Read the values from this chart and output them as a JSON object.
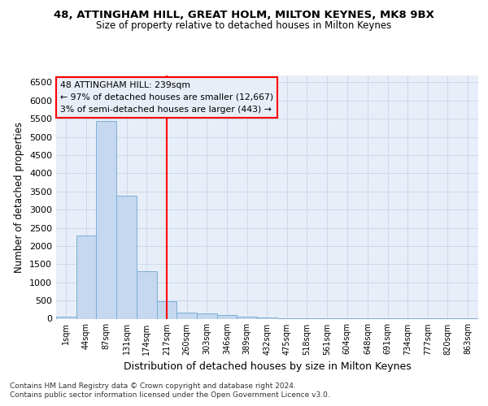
{
  "title1": "48, ATTINGHAM HILL, GREAT HOLM, MILTON KEYNES, MK8 9BX",
  "title2": "Size of property relative to detached houses in Milton Keynes",
  "xlabel": "Distribution of detached houses by size in Milton Keynes",
  "ylabel": "Number of detached properties",
  "footnote1": "Contains HM Land Registry data © Crown copyright and database right 2024.",
  "footnote2": "Contains public sector information licensed under the Open Government Licence v3.0.",
  "annotation_title": "48 ATTINGHAM HILL: 239sqm",
  "annotation_line1": "← 97% of detached houses are smaller (12,667)",
  "annotation_line2": "3% of semi-detached houses are larger (443) →",
  "property_size": 239,
  "bar_color": "#c5d8ef",
  "bar_edge_color": "#7bafd4",
  "vline_color": "red",
  "grid_color": "#c8d4e8",
  "background_color": "#ffffff",
  "plot_bg_color": "#e8eef8",
  "categories": [
    "1sqm",
    "44sqm",
    "87sqm",
    "131sqm",
    "174sqm",
    "217sqm",
    "260sqm",
    "303sqm",
    "346sqm",
    "389sqm",
    "432sqm",
    "475sqm",
    "518sqm",
    "561sqm",
    "604sqm",
    "648sqm",
    "691sqm",
    "734sqm",
    "777sqm",
    "820sqm",
    "863sqm"
  ],
  "bin_left_edges": [
    1,
    44,
    87,
    131,
    174,
    217,
    260,
    303,
    346,
    389,
    432,
    475,
    518,
    561,
    604,
    648,
    691,
    734,
    777,
    820,
    863
  ],
  "bin_width": 43,
  "bar_heights": [
    60,
    2280,
    5430,
    3390,
    1300,
    490,
    160,
    145,
    90,
    55,
    30,
    10,
    5,
    5,
    5,
    2,
    2,
    2,
    2,
    2,
    2
  ],
  "ylim": [
    0,
    6700
  ],
  "yticks": [
    0,
    500,
    1000,
    1500,
    2000,
    2500,
    3000,
    3500,
    4000,
    4500,
    5000,
    5500,
    6000,
    6500
  ]
}
